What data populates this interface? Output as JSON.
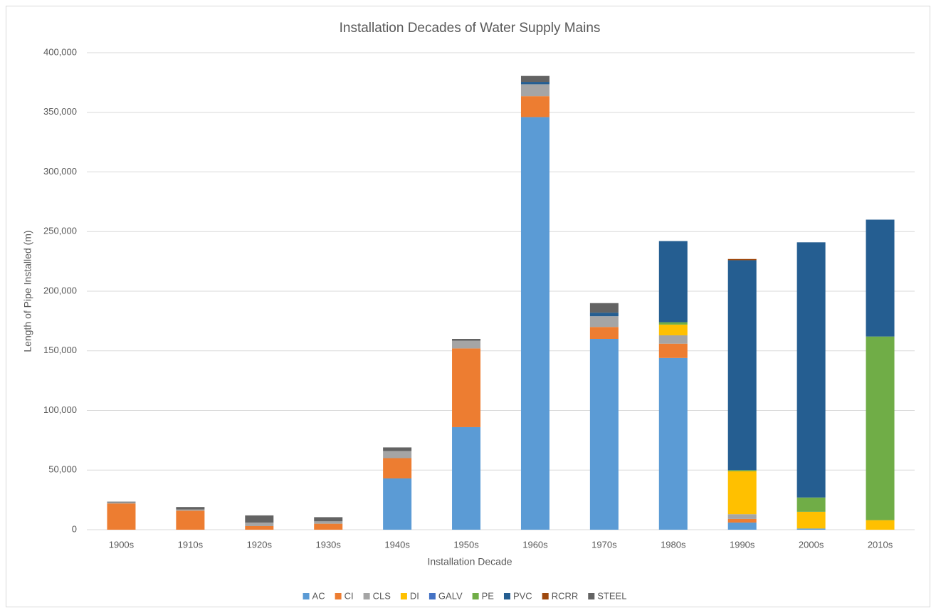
{
  "chart_data": {
    "type": "stacked_bar",
    "title": "Installation Decades of Water Supply Mains",
    "x_label": "Installation Decade",
    "y_label": "Length of Pipe Installed (m)",
    "categories": [
      "1900s",
      "1910s",
      "1920s",
      "1930s",
      "1940s",
      "1950s",
      "1960s",
      "1970s",
      "1980s",
      "1990s",
      "2000s",
      "2010s"
    ],
    "series": [
      {
        "name": "AC",
        "color": "#5b9bd5",
        "values": [
          0,
          0,
          0,
          0,
          43000,
          86000,
          346000,
          160000,
          144000,
          6000,
          1000,
          0
        ]
      },
      {
        "name": "CI",
        "color": "#ed7d31",
        "values": [
          22000,
          16000,
          3000,
          5000,
          17000,
          66000,
          17500,
          10000,
          12000,
          3000,
          0,
          0
        ]
      },
      {
        "name": "CLS",
        "color": "#a5a5a5",
        "values": [
          1000,
          1000,
          3000,
          2000,
          6000,
          6500,
          10000,
          9000,
          7000,
          4000,
          0,
          0
        ]
      },
      {
        "name": "DI",
        "color": "#ffc000",
        "values": [
          0,
          0,
          0,
          0,
          0,
          0,
          0,
          0,
          9000,
          36000,
          14000,
          8000
        ]
      },
      {
        "name": "GALV",
        "color": "#4472c4",
        "values": [
          0,
          0,
          0,
          0,
          0,
          0,
          0,
          0,
          0,
          0,
          0,
          0
        ]
      },
      {
        "name": "PE",
        "color": "#70ad47",
        "values": [
          0,
          0,
          0,
          0,
          0,
          0,
          0,
          0,
          2000,
          1000,
          12000,
          154000
        ]
      },
      {
        "name": "PVC",
        "color": "#255e91",
        "values": [
          0,
          0,
          0,
          0,
          0,
          0,
          2000,
          3000,
          68000,
          176000,
          214000,
          98000
        ]
      },
      {
        "name": "RCRR",
        "color": "#9e480e",
        "values": [
          0,
          0,
          0,
          0,
          0,
          0,
          0,
          0,
          0,
          1000,
          0,
          0
        ]
      },
      {
        "name": "STEEL",
        "color": "#636363",
        "values": [
          500,
          2000,
          6000,
          3500,
          3000,
          1500,
          5000,
          8000,
          0,
          0,
          0,
          0
        ]
      }
    ],
    "ylim": [
      0,
      400000
    ],
    "yticks": [
      0,
      {
        "value": 50000,
        "label": "50,000"
      },
      {
        "value": 100000,
        "label": "100,000"
      },
      {
        "value": 150000,
        "label": "150,000"
      },
      {
        "value": 200000,
        "label": "200,000"
      },
      {
        "value": 250000,
        "label": "250,000"
      },
      {
        "value": 300000,
        "label": "300,000"
      },
      {
        "value": 350000,
        "label": "350,000"
      },
      {
        "value": 400000,
        "label": "400,000"
      }
    ],
    "grid": true,
    "legend": "bottom"
  }
}
